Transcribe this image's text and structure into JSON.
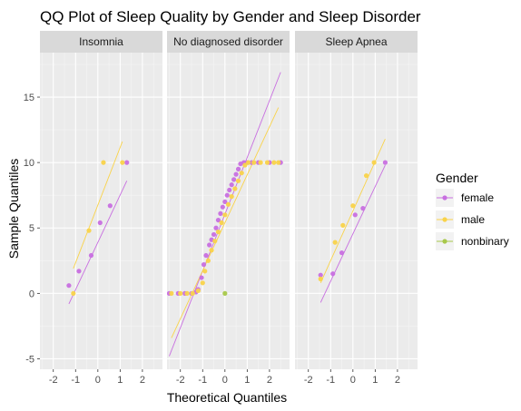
{
  "chart_data": {
    "type": "scatter",
    "title": "QQ Plot of Sleep Quality by Gender and Sleep Disorder",
    "xlabel": "Theoretical Quantiles",
    "ylabel": "Sample Quantiles",
    "xlim": [
      -2.6,
      2.9
    ],
    "ylim": [
      -5.8,
      18.4
    ],
    "x_ticks": [
      -2,
      -1,
      0,
      1,
      2
    ],
    "y_ticks": [
      -5,
      0,
      5,
      10,
      15
    ],
    "grid": true,
    "legend": {
      "title": "Gender",
      "placement": "right",
      "entries": [
        {
          "label": "female",
          "color": "#c86fe0"
        },
        {
          "label": "male",
          "color": "#f9d34a"
        },
        {
          "label": "nonbinary",
          "color": "#a8c84a"
        }
      ]
    },
    "panels": [
      {
        "label": "Insomnia",
        "series": [
          {
            "group": "female",
            "points": [
              [
                -1.3,
                0.6
              ],
              [
                -0.85,
                1.7
              ],
              [
                -0.3,
                2.9
              ],
              [
                0.1,
                5.4
              ],
              [
                0.55,
                6.7
              ],
              [
                1.3,
                10.0
              ]
            ],
            "line": [
              [
                -1.3,
                -0.8
              ],
              [
                1.3,
                8.6
              ]
            ]
          },
          {
            "group": "male",
            "points": [
              [
                -1.1,
                0.0
              ],
              [
                -0.4,
                4.8
              ],
              [
                0.25,
                10.0
              ],
              [
                1.1,
                10.0
              ]
            ],
            "line": [
              [
                -1.1,
                1.9
              ],
              [
                1.1,
                11.6
              ]
            ]
          }
        ]
      },
      {
        "label": "No diagnosed disorder",
        "series": [
          {
            "group": "female",
            "points": [
              [
                -2.5,
                0.0
              ],
              [
                -2.1,
                0.0
              ],
              [
                -1.8,
                0.0
              ],
              [
                -1.5,
                0.0
              ],
              [
                -1.3,
                0.1
              ],
              [
                -1.2,
                0.3
              ],
              [
                -1.05,
                1.2
              ],
              [
                -0.95,
                2.2
              ],
              [
                -0.85,
                2.9
              ],
              [
                -0.7,
                3.7
              ],
              [
                -0.6,
                4.1
              ],
              [
                -0.5,
                4.5
              ],
              [
                -0.4,
                5.0
              ],
              [
                -0.3,
                5.6
              ],
              [
                -0.2,
                6.1
              ],
              [
                -0.1,
                6.6
              ],
              [
                0.0,
                7.0
              ],
              [
                0.1,
                7.5
              ],
              [
                0.2,
                7.9
              ],
              [
                0.3,
                8.3
              ],
              [
                0.4,
                8.7
              ],
              [
                0.5,
                9.1
              ],
              [
                0.6,
                9.5
              ],
              [
                0.7,
                9.9
              ],
              [
                0.85,
                10.0
              ],
              [
                1.0,
                10.0
              ],
              [
                1.2,
                10.0
              ],
              [
                1.5,
                10.0
              ],
              [
                2.0,
                10.0
              ],
              [
                2.5,
                10.0
              ]
            ],
            "line": [
              [
                -2.5,
                -4.8
              ],
              [
                2.5,
                16.9
              ]
            ]
          },
          {
            "group": "male",
            "points": [
              [
                -2.4,
                0.0
              ],
              [
                -2.0,
                0.0
              ],
              [
                -1.7,
                0.0
              ],
              [
                -1.45,
                0.0
              ],
              [
                -1.2,
                0.2
              ],
              [
                -1.0,
                0.8
              ],
              [
                -0.9,
                1.7
              ],
              [
                -0.75,
                2.5
              ],
              [
                -0.6,
                3.3
              ],
              [
                -0.45,
                4.0
              ],
              [
                -0.3,
                4.7
              ],
              [
                -0.15,
                5.4
              ],
              [
                0.0,
                6.0
              ],
              [
                0.15,
                6.8
              ],
              [
                0.3,
                7.4
              ],
              [
                0.45,
                8.0
              ],
              [
                0.6,
                8.6
              ],
              [
                0.75,
                9.2
              ],
              [
                0.9,
                9.8
              ],
              [
                1.05,
                10.0
              ],
              [
                1.3,
                10.0
              ],
              [
                1.6,
                10.0
              ],
              [
                1.9,
                10.0
              ],
              [
                2.2,
                10.0
              ],
              [
                2.4,
                10.0
              ]
            ],
            "line": [
              [
                -2.4,
                -3.4
              ],
              [
                2.4,
                14.2
              ]
            ]
          },
          {
            "group": "nonbinary",
            "points": [
              [
                0.0,
                0.0
              ]
            ],
            "line": []
          }
        ]
      },
      {
        "label": "Sleep Apnea",
        "series": [
          {
            "group": "female",
            "points": [
              [
                -1.45,
                1.4
              ],
              [
                -0.9,
                1.5
              ],
              [
                -0.5,
                3.1
              ],
              [
                0.1,
                6.0
              ],
              [
                0.45,
                6.5
              ],
              [
                1.45,
                10.0
              ]
            ],
            "line": [
              [
                -1.45,
                -0.7
              ],
              [
                1.45,
                9.8
              ]
            ]
          },
          {
            "group": "male",
            "points": [
              [
                -1.45,
                1.1
              ],
              [
                -0.8,
                3.9
              ],
              [
                -0.45,
                5.2
              ],
              [
                0.0,
                6.7
              ],
              [
                0.6,
                9.0
              ],
              [
                0.95,
                10.0
              ]
            ],
            "line": [
              [
                -1.45,
                0.8
              ],
              [
                1.45,
                11.8
              ]
            ]
          }
        ]
      }
    ]
  }
}
